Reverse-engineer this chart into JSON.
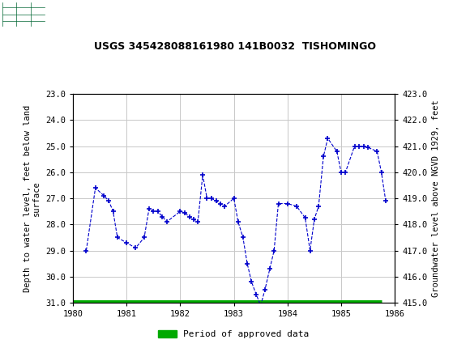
{
  "title": "USGS 345428088161980 141B0032  TISHOMINGO",
  "ylabel_left": "Depth to water level, feet below land\nsurface",
  "ylabel_right": "Groundwater level above NGVD 1929, feet",
  "xlim": [
    1980,
    1986
  ],
  "ylim_left": [
    31.0,
    23.0
  ],
  "ylim_right": [
    415.0,
    423.0
  ],
  "yticks_left": [
    23.0,
    24.0,
    25.0,
    26.0,
    27.0,
    28.0,
    29.0,
    30.0,
    31.0
  ],
  "yticks_right": [
    415.0,
    416.0,
    417.0,
    418.0,
    419.0,
    420.0,
    421.0,
    422.0,
    423.0
  ],
  "xticks": [
    1980,
    1981,
    1982,
    1983,
    1984,
    1985,
    1986
  ],
  "line_color": "#0000cc",
  "bar_color": "#00aa00",
  "background_color": "#ffffff",
  "header_color": "#006633",
  "grid_color": "#c8c8c8",
  "x_data": [
    1980.25,
    1980.42,
    1980.58,
    1980.67,
    1980.75,
    1980.83,
    1981.0,
    1981.17,
    1981.33,
    1981.42,
    1981.5,
    1981.58,
    1981.67,
    1981.75,
    1982.0,
    1982.08,
    1982.17,
    1982.25,
    1982.33,
    1982.42,
    1982.5,
    1982.58,
    1982.67,
    1982.75,
    1982.83,
    1983.0,
    1983.08,
    1983.17,
    1983.25,
    1983.33,
    1983.42,
    1983.5,
    1983.58,
    1983.67,
    1983.75,
    1983.83,
    1984.0,
    1984.17,
    1984.33,
    1984.42,
    1984.5,
    1984.58,
    1984.67,
    1984.75,
    1984.92,
    1985.0,
    1985.08,
    1985.25,
    1985.33,
    1985.42,
    1985.5,
    1985.67,
    1985.75,
    1985.83
  ],
  "y_data": [
    29.0,
    26.6,
    26.9,
    27.1,
    27.5,
    28.5,
    28.7,
    28.9,
    28.5,
    27.4,
    27.5,
    27.5,
    27.7,
    27.9,
    27.5,
    27.55,
    27.7,
    27.8,
    27.9,
    26.1,
    27.0,
    27.0,
    27.1,
    27.2,
    27.3,
    27.0,
    27.9,
    28.5,
    29.5,
    30.2,
    30.7,
    31.1,
    30.5,
    29.7,
    29.0,
    27.2,
    27.2,
    27.3,
    27.75,
    29.0,
    27.8,
    27.3,
    25.4,
    24.7,
    25.2,
    26.0,
    26.0,
    25.0,
    25.0,
    25.0,
    25.05,
    25.2,
    26.0,
    27.1
  ],
  "legend_label": "Period of approved data",
  "approved_xmin": 1980.0,
  "approved_xmax": 1985.75
}
